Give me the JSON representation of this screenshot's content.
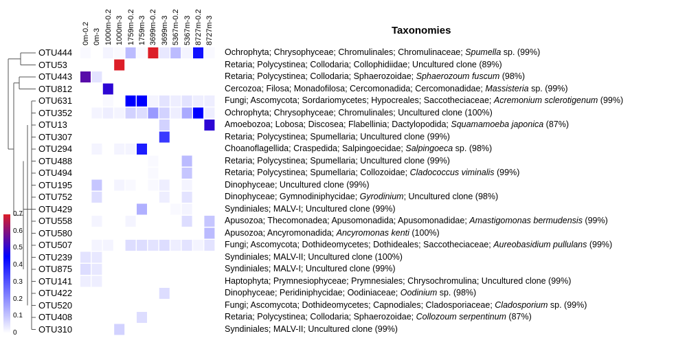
{
  "chart_data": {
    "type": "heatmap",
    "title": "",
    "columns": [
      "0m-0.2",
      "0m-3",
      "1000m-0.2",
      "1000m-3",
      "1759m-0.2",
      "1759m-3",
      "3699m-0.2",
      "3699m-3",
      "5367m-0.2",
      "5367m-3",
      "8727m-0.2",
      "8727m-3"
    ],
    "rows": [
      "OTU444",
      "OTU53",
      "OTU443",
      "OTU812",
      "OTU631",
      "OTU352",
      "OTU13",
      "OTU307",
      "OTU294",
      "OTU488",
      "OTU494",
      "OTU195",
      "OTU752",
      "OTU429",
      "OTU558",
      "OTU580",
      "OTU507",
      "OTU239",
      "OTU875",
      "OTU141",
      "OTU422",
      "OTU520",
      "OTU408",
      "OTU310"
    ],
    "values": [
      [
        0.01,
        0,
        0.02,
        0.01,
        0.12,
        0.01,
        0.7,
        0.04,
        0.12,
        0.02,
        0.42,
        0.01
      ],
      [
        0,
        0,
        0,
        0.7,
        0,
        0,
        0,
        0,
        0,
        0,
        0,
        0
      ],
      [
        0.55,
        0.05,
        0,
        0,
        0,
        0,
        0,
        0,
        0,
        0,
        0,
        0
      ],
      [
        0,
        0,
        0.5,
        0,
        0,
        0,
        0,
        0,
        0,
        0,
        0,
        0
      ],
      [
        0,
        0,
        0.01,
        0,
        0.45,
        0.45,
        0.02,
        0.05,
        0.03,
        0.05,
        0.03,
        0.03
      ],
      [
        0,
        0.02,
        0.03,
        0.02,
        0.08,
        0.06,
        0.18,
        0.08,
        0.03,
        0.15,
        0.45,
        0.03
      ],
      [
        0,
        0,
        0,
        0,
        0,
        0,
        0,
        0.08,
        0,
        0,
        0,
        0.5
      ],
      [
        0,
        0,
        0,
        0,
        0,
        0,
        0,
        0.35,
        0,
        0,
        0,
        0
      ],
      [
        0,
        0.02,
        0,
        0.02,
        0.02,
        0.4,
        0,
        0,
        0,
        0,
        0,
        0
      ],
      [
        0,
        0,
        0,
        0,
        0,
        0,
        0.01,
        0,
        0,
        0.12,
        0,
        0
      ],
      [
        0,
        0,
        0,
        0,
        0,
        0,
        0.01,
        0,
        0,
        0.1,
        0,
        0
      ],
      [
        0,
        0.1,
        0,
        0.02,
        0.01,
        0,
        0.01,
        0.03,
        0,
        0.02,
        0,
        0
      ],
      [
        0,
        0.06,
        0,
        0,
        0,
        0,
        0,
        0.03,
        0,
        0.05,
        0,
        0
      ],
      [
        0,
        0,
        0,
        0,
        0,
        0.14,
        0,
        0,
        0.01,
        0.02,
        0,
        0
      ],
      [
        0,
        0.02,
        0,
        0,
        0.02,
        0,
        0,
        0,
        0,
        0.06,
        0,
        0.1
      ],
      [
        0,
        0,
        0,
        0,
        0,
        0,
        0,
        0,
        0,
        0,
        0,
        0.12
      ],
      [
        0,
        0.02,
        0.02,
        0,
        0.06,
        0.06,
        0.05,
        0.06,
        0.03,
        0.05,
        0.02,
        0.05
      ],
      [
        0.05,
        0.04,
        0,
        0,
        0,
        0,
        0,
        0,
        0,
        0,
        0,
        0
      ],
      [
        0.06,
        0.04,
        0,
        0,
        0,
        0,
        0,
        0,
        0,
        0,
        0,
        0
      ],
      [
        0.03,
        0.03,
        0,
        0,
        0,
        0,
        0,
        0,
        0,
        0,
        0,
        0
      ],
      [
        0,
        0,
        0,
        0,
        0,
        0,
        0,
        0.06,
        0,
        0,
        0,
        0
      ],
      [
        0,
        0,
        0,
        0,
        0,
        0,
        0,
        0,
        0,
        0,
        0,
        0
      ],
      [
        0,
        0,
        0,
        0,
        0,
        0.06,
        0,
        0,
        0,
        0,
        0,
        0
      ],
      [
        0,
        0,
        0,
        0.08,
        0,
        0,
        0,
        0,
        0,
        0,
        0,
        0
      ]
    ],
    "colorscale": {
      "min": 0,
      "max": 0.7,
      "stops": [
        [
          0,
          "#ffffff"
        ],
        [
          0.45,
          "#0000ff"
        ],
        [
          0.7,
          "#dc1e28"
        ]
      ],
      "ticks": [
        "0",
        "0.1",
        "0.2",
        "0.3",
        "0.4",
        "0.5",
        "0.6",
        "0.7"
      ]
    },
    "grid": false,
    "has_dendrogram": true,
    "taxonomy_title": "Taxonomies",
    "taxonomies": [
      [
        {
          "t": "Ochrophyta; Chrysophyceae; Chromulinales; Chromulinaceae; "
        },
        {
          "t": "Spumella",
          "i": true
        },
        {
          "t": " sp. (99%)"
        }
      ],
      [
        {
          "t": "Retaria; Polycystinea; Collodaria; Collophidiidae; Uncultured clone (89%)"
        }
      ],
      [
        {
          "t": "Retaria; Polycystinea; Collodaria; Sphaerozoidae; "
        },
        {
          "t": "Sphaerozoum fuscum",
          "i": true
        },
        {
          "t": " (98%)"
        }
      ],
      [
        {
          "t": "Cercozoa; Filosa; Monadofilosa; Cercomonadida; Cercomonadidae; "
        },
        {
          "t": "Massisteria",
          "i": true
        },
        {
          "t": " sp. (99%)"
        }
      ],
      [
        {
          "t": "Fungi; Ascomycota; Sordariomycetes; Hypocreales; Saccotheciaceae; "
        },
        {
          "t": "Acremonium sclerotigenum",
          "i": true
        },
        {
          "t": " (99%)"
        }
      ],
      [
        {
          "t": "Ochrophyta; Chrysophyceae; Chromulinales; Uncultured clone (100%)"
        }
      ],
      [
        {
          "t": "Amoebozoa; Lobosa; Discosea; Flabellinia; Dactylopodida; "
        },
        {
          "t": "Squamamoeba japonica",
          "i": true
        },
        {
          "t": "  (87%)"
        }
      ],
      [
        {
          "t": "Retaria; Polycystinea; Spumellaria; Uncultured clone (99%)"
        }
      ],
      [
        {
          "t": "Choanoflagellida; Craspedida; Salpingoecidae; "
        },
        {
          "t": "Salpingoeca",
          "i": true
        },
        {
          "t": " sp. (98%)"
        }
      ],
      [
        {
          "t": "Retaria; Polycystinea; Spumellaria; Uncultured clone (99%)"
        }
      ],
      [
        {
          "t": "Retaria; Polycystinea; Spumellaria; Collozoidae; "
        },
        {
          "t": "Cladococcus viminalis",
          "i": true
        },
        {
          "t": " (99%)"
        }
      ],
      [
        {
          "t": "Dinophyceae; Uncultured clone (99%)"
        }
      ],
      [
        {
          "t": "Dinophyceae; Gymnodiniphycidae; "
        },
        {
          "t": "Gyrodinium",
          "i": true
        },
        {
          "t": "; Uncultured clone (98%)"
        }
      ],
      [
        {
          "t": "Syndiniales; MALV-I; Uncultured clone (99%)"
        }
      ],
      [
        {
          "t": "Apusozoa; Thecomonadea;  Apusomonadida; Apusomonadidae; "
        },
        {
          "t": "Amastigomonas bermudensis",
          "i": true
        },
        {
          "t": " (99%)"
        }
      ],
      [
        {
          "t": "Apusozoa; Ancyromonadida;  "
        },
        {
          "t": "Ancyromonas kenti",
          "i": true
        },
        {
          "t": " (100%)"
        }
      ],
      [
        {
          "t": "Fungi; Ascomycota; Dothideomycetes; Dothideales; Saccotheciaceae; "
        },
        {
          "t": "Aureobasidium pullulans",
          "i": true
        },
        {
          "t": " (99%)"
        }
      ],
      [
        {
          "t": "Syndiniales; MALV-II; Uncultured clone (100%)"
        }
      ],
      [
        {
          "t": "Syndiniales; MALV-I; Uncultured clone (99%)"
        }
      ],
      [
        {
          "t": "Haptophyta; Prymnesiophyceae; Prymnesiales; Chrysochromulina; Uncultured clone (99%)"
        }
      ],
      [
        {
          "t": "Dinophyceae; Peridiniphycidae; Oodiniaceae; "
        },
        {
          "t": "Oodinium",
          "i": true
        },
        {
          "t": " sp. (98%)"
        }
      ],
      [
        {
          "t": "Fungi; Ascomycota; Dothideomycetes; Capnodiales; Cladosporiaceae;  "
        },
        {
          "t": "Cladosporium",
          "i": true
        },
        {
          "t": " sp. (99%)"
        }
      ],
      [
        {
          "t": "Retaria; Polycystinea; Collodaria; Sphaerozoidae; "
        },
        {
          "t": "Collozoum serpentinum",
          "i": true
        },
        {
          "t": " (87%)"
        }
      ],
      [
        {
          "t": "Syndiniales; MALV-II; Uncultured clone (99%)"
        }
      ]
    ]
  }
}
